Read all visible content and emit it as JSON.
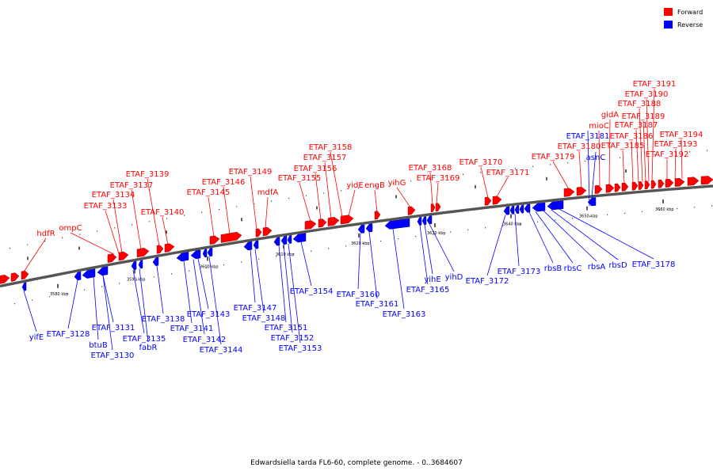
{
  "caption": "Edwardsiella tarda FL6-60, complete genome. - 0..3684607",
  "legend": [
    {
      "label": "Forward",
      "color": "#ff0000"
    },
    {
      "label": "Reverse",
      "color": "#0000ff"
    }
  ],
  "colors": {
    "forward": "#ff0000",
    "reverse": "#0000ff",
    "backbone": "#777777"
  },
  "ticks": [
    "3580 kbp",
    "3590 kbp",
    "3600 kbp",
    "3610 kbp",
    "3620 kbp",
    "3630 kbp",
    "3640 kbp",
    "3650 kbp",
    "3660 kbp"
  ],
  "forward_labels": [
    "hdfR",
    "ompC",
    "ETAF_3133",
    "ETAF_3134",
    "ETAF_3137",
    "ETAF_3139",
    "ETAF_3140",
    "ETAF_3145",
    "ETAF_3146",
    "ETAF_3149",
    "mdfA",
    "ETAF_3155",
    "ETAF_3156",
    "ETAF_3157",
    "ETAF_3158",
    "yidE",
    "engB",
    "yihG",
    "ETAF_3168",
    "ETAF_3169",
    "ETAF_3170",
    "ETAF_3171",
    "ETAF_3179",
    "ETAF_3180",
    "mioC",
    "gidA",
    "ETAF_3185",
    "ETAF_3186",
    "ETAF_3187",
    "ETAF_3188",
    "ETAF_3189",
    "ETAF_3190",
    "ETAF_3191",
    "ETAF_3192",
    "ETAF_3193",
    "ETAF_3194"
  ],
  "reverse_labels": [
    "yifE",
    "ETAF_3128",
    "btuB",
    "ETAF_3130",
    "ETAF_3131",
    "ETAF_3135",
    "fabR",
    "ETAF_3138",
    "ETAF_3141",
    "ETAF_3142",
    "ETAF_3143",
    "ETAF_3144",
    "ETAF_3147",
    "ETAF_3148",
    "ETAF_3151",
    "ETAF_3152",
    "ETAF_3153",
    "ETAF_3154",
    "ETAF_3160",
    "ETAF_3161",
    "ETAF_3163",
    "ETAF_3165",
    "yihE",
    "yihD",
    "ETAF_3172",
    "ETAF_3173",
    "rbsB",
    "rbsC",
    "rbsA",
    "rbsD",
    "ETAF_3178",
    "ETAF_3181",
    "asnC"
  ]
}
